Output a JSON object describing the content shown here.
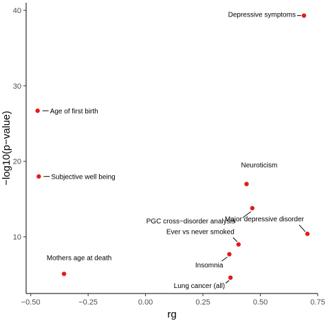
{
  "chart_data": {
    "type": "scatter",
    "title": "",
    "xlabel": "rg",
    "ylabel": "−log10(p−value)",
    "xlim": [
      -0.52,
      0.75
    ],
    "ylim": [
      2.5,
      41
    ],
    "grid": false,
    "x_ticks": [
      "−0.50",
      "−0.25",
      "0.00",
      "0.25",
      "0.50",
      "0.75"
    ],
    "x_tick_values": [
      -0.5,
      -0.25,
      0,
      0.25,
      0.5,
      0.75
    ],
    "y_ticks": [
      "10",
      "20",
      "30",
      "40"
    ],
    "y_tick_values": [
      10,
      20,
      30,
      40
    ],
    "point_color": "#e41a1c",
    "points": [
      {
        "label": "Depressive symptoms",
        "x": 0.69,
        "y": 39.3
      },
      {
        "label": "Age of first birth",
        "x": -0.47,
        "y": 26.7
      },
      {
        "label": "Subjective well being",
        "x": -0.465,
        "y": 18.0
      },
      {
        "label": "Neuroticism",
        "x": 0.44,
        "y": 17.0
      },
      {
        "label": "PGC cross−disorder analysis",
        "x": 0.465,
        "y": 13.8
      },
      {
        "label": "Major depressive disorder",
        "x": 0.705,
        "y": 10.4
      },
      {
        "label": "Ever vs never smoked",
        "x": 0.405,
        "y": 9.0
      },
      {
        "label": "Insomnia",
        "x": 0.365,
        "y": 7.7
      },
      {
        "label": "Mothers age at death",
        "x": -0.355,
        "y": 5.1
      },
      {
        "label": "Lung cancer (all)",
        "x": 0.37,
        "y": 4.6
      }
    ]
  }
}
